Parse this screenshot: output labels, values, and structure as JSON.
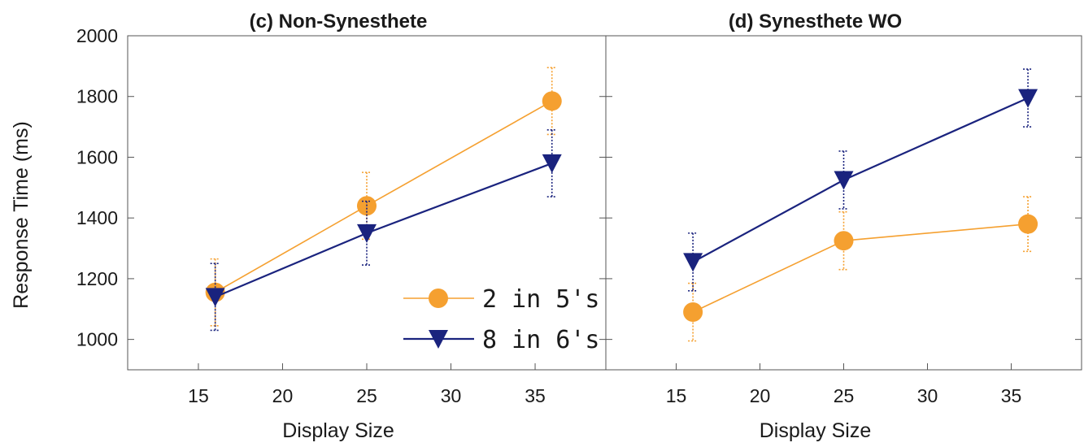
{
  "chart_data": [
    {
      "type": "line",
      "title": "(c) Non-Synesthete",
      "xlabel": "Display Size",
      "ylabel": "Response Time (ms)",
      "xlim": [
        10,
        40
      ],
      "ylim": [
        900,
        2000
      ],
      "xticks": [
        15,
        20,
        25,
        30,
        35
      ],
      "yticks": [
        1000,
        1200,
        1400,
        1600,
        1800,
        2000
      ],
      "x": [
        16,
        25,
        36
      ],
      "series": [
        {
          "name": "2 in 5's",
          "color": "#f5a030",
          "marker": "circle",
          "values": [
            1155,
            1440,
            1785
          ],
          "err": [
            110,
            110,
            110
          ]
        },
        {
          "name": "8 in 6's",
          "color": "#1a237e",
          "marker": "triangle-down",
          "values": [
            1140,
            1350,
            1580
          ],
          "err": [
            110,
            105,
            110
          ]
        }
      ],
      "legend": "bottom-right"
    },
    {
      "type": "line",
      "title": "(d) Synesthete WO",
      "xlabel": "Display Size",
      "ylabel": "",
      "xlim": [
        10,
        40
      ],
      "ylim": [
        900,
        2000
      ],
      "xticks": [
        15,
        20,
        25,
        30,
        35
      ],
      "yticks": [
        1000,
        1200,
        1400,
        1600,
        1800,
        2000
      ],
      "x": [
        16,
        25,
        36
      ],
      "series": [
        {
          "name": "2 in 5's",
          "color": "#f5a030",
          "marker": "circle",
          "values": [
            1090,
            1325,
            1380
          ],
          "err": [
            95,
            95,
            90
          ]
        },
        {
          "name": "8 in 6's",
          "color": "#1a237e",
          "marker": "triangle-down",
          "values": [
            1255,
            1525,
            1795
          ],
          "err": [
            95,
            95,
            95
          ]
        }
      ],
      "legend": "none"
    }
  ]
}
